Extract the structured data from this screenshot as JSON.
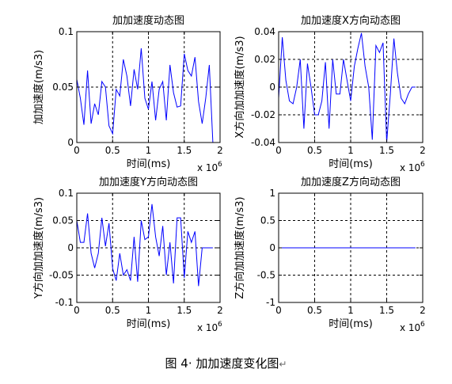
{
  "caption": {
    "text": "图 4· 加加速度变化图",
    "mark": "↵"
  },
  "chart_data": [
    {
      "type": "line",
      "title": "加加速度动态图",
      "xlabel": "时间(ms)",
      "ylabel": "加加速度(m/s3)",
      "x_exponent": "x 10",
      "x_exponent_power": "6",
      "xlim": [
        0,
        2
      ],
      "ylim": [
        0,
        0.1
      ],
      "xticks": [
        "0",
        "0.5",
        "1",
        "1.5",
        "2"
      ],
      "yticks": [
        "0",
        "0.05",
        "0.1"
      ],
      "grid": true,
      "line_color": "#0000ff",
      "series": [
        {
          "x": [
            0.0,
            0.05,
            0.1,
            0.15,
            0.2,
            0.25,
            0.3,
            0.35,
            0.4,
            0.45,
            0.5,
            0.55,
            0.6,
            0.65,
            0.7,
            0.75,
            0.8,
            0.85,
            0.9,
            0.95,
            1.0,
            1.05,
            1.1,
            1.15,
            1.2,
            1.25,
            1.3,
            1.35,
            1.4,
            1.45,
            1.5,
            1.55,
            1.6,
            1.65,
            1.7,
            1.75,
            1.8,
            1.85,
            1.9
          ],
          "values": [
            0.057,
            0.04,
            0.016,
            0.065,
            0.017,
            0.035,
            0.025,
            0.055,
            0.05,
            0.015,
            0.008,
            0.048,
            0.042,
            0.075,
            0.06,
            0.033,
            0.066,
            0.048,
            0.085,
            0.04,
            0.03,
            0.055,
            0.02,
            0.048,
            0.055,
            0.02,
            0.07,
            0.045,
            0.032,
            0.033,
            0.08,
            0.065,
            0.06,
            0.077,
            0.037,
            0.017,
            0.04,
            0.07,
            0.0
          ]
        }
      ]
    },
    {
      "type": "line",
      "title": "加加速度X方向动态图",
      "xlabel": "时间(ms)",
      "ylabel": "X方向加加速度(m/s3)",
      "x_exponent": "x 10",
      "x_exponent_power": "6",
      "xlim": [
        0,
        2
      ],
      "ylim": [
        -0.04,
        0.04
      ],
      "xticks": [
        "0",
        "0.5",
        "1",
        "1.5",
        "2"
      ],
      "yticks": [
        "-0.04",
        "-0.02",
        "0",
        "0.02",
        "0.04"
      ],
      "grid": true,
      "line_color": "#0000ff",
      "series": [
        {
          "x": [
            0.0,
            0.05,
            0.1,
            0.15,
            0.2,
            0.25,
            0.3,
            0.35,
            0.4,
            0.45,
            0.5,
            0.55,
            0.6,
            0.65,
            0.7,
            0.75,
            0.8,
            0.85,
            0.9,
            0.95,
            1.0,
            1.05,
            1.1,
            1.15,
            1.2,
            1.25,
            1.3,
            1.35,
            1.4,
            1.45,
            1.5,
            1.55,
            1.6,
            1.65,
            1.7,
            1.75,
            1.8,
            1.85,
            1.9
          ],
          "values": [
            -0.008,
            0.036,
            0.005,
            -0.01,
            -0.012,
            0.0,
            0.02,
            -0.03,
            0.017,
            0.0,
            -0.02,
            -0.02,
            -0.01,
            0.018,
            -0.03,
            0.02,
            -0.005,
            -0.005,
            0.02,
            0.005,
            -0.01,
            0.015,
            0.028,
            0.039,
            0.015,
            0.0,
            -0.038,
            0.03,
            0.025,
            0.032,
            -0.04,
            -0.005,
            0.035,
            0.01,
            -0.008,
            -0.012,
            -0.005,
            0.0,
            0.0
          ]
        }
      ]
    },
    {
      "type": "line",
      "title": "加加速度Y方向动态图",
      "xlabel": "时间(ms)",
      "ylabel": "Y方向加加速度(m/s3)",
      "x_exponent": "x 10",
      "x_exponent_power": "6",
      "xlim": [
        0,
        2
      ],
      "ylim": [
        -0.1,
        0.1
      ],
      "xticks": [
        "0",
        "0.5",
        "1",
        "1.5",
        "2"
      ],
      "yticks": [
        "-0.1",
        "-0.05",
        "0",
        "0.05",
        "0.1"
      ],
      "grid": true,
      "line_color": "#0000ff",
      "series": [
        {
          "x": [
            0.0,
            0.05,
            0.1,
            0.15,
            0.2,
            0.25,
            0.3,
            0.35,
            0.4,
            0.45,
            0.5,
            0.55,
            0.6,
            0.65,
            0.7,
            0.75,
            0.8,
            0.85,
            0.9,
            0.95,
            1.0,
            1.05,
            1.1,
            1.15,
            1.2,
            1.25,
            1.3,
            1.35,
            1.4,
            1.45,
            1.5,
            1.55,
            1.6,
            1.65,
            1.7,
            1.75,
            1.8,
            1.85,
            1.9
          ],
          "values": [
            0.05,
            0.01,
            0.01,
            0.063,
            -0.01,
            -0.037,
            -0.01,
            0.055,
            0.003,
            0.045,
            -0.038,
            -0.06,
            -0.01,
            -0.05,
            -0.04,
            -0.06,
            0.02,
            -0.062,
            0.05,
            0.015,
            0.02,
            0.08,
            0.02,
            -0.015,
            0.04,
            -0.05,
            0.01,
            -0.065,
            0.055,
            0.055,
            -0.055,
            0.03,
            0.01,
            0.03,
            -0.07,
            0.0,
            0.0,
            0.0,
            0.0
          ]
        }
      ]
    },
    {
      "type": "line",
      "title": "加加速度Z方向动态图",
      "xlabel": "时间(ms)",
      "ylabel": "Z方向加加速度(m/s3)",
      "x_exponent": "x 10",
      "x_exponent_power": "6",
      "xlim": [
        0,
        2
      ],
      "ylim": [
        -1,
        1
      ],
      "xticks": [
        "0",
        "0.5",
        "1",
        "1.5",
        "2"
      ],
      "yticks": [
        "-1",
        "-0.5",
        "0",
        "0.5",
        "1"
      ],
      "grid": true,
      "line_color": "#0000ff",
      "series": [
        {
          "x": [
            0.0,
            1.9
          ],
          "values": [
            0,
            0
          ]
        }
      ]
    }
  ]
}
